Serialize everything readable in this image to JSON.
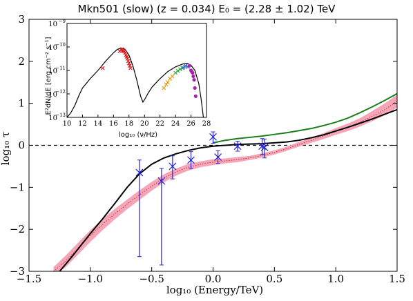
{
  "chart_data": [
    {
      "type": "line",
      "title": "Mkn501 (slow) (z = 0.034) E₀ = (2.28 ± 1.02) TeV",
      "xlabel": "log₁₀ (Energy/TeV)",
      "ylabel": "log₁₀ τ",
      "xlim": [
        -1.5,
        1.5
      ],
      "ylim": [
        -3,
        3
      ],
      "xticks": [
        "−1.5",
        "−1.0",
        "−0.5",
        "0.0",
        "0.5",
        "1.0",
        "1.5"
      ],
      "yticks": [
        "−3",
        "−2",
        "−1",
        "0",
        "1",
        "2",
        "3"
      ],
      "reference_line": {
        "y": 0,
        "style": "dashed",
        "color": "#000000"
      },
      "series": [
        {
          "style": "line",
          "color": "#000000",
          "x": [
            -1.25,
            -1.15,
            -1.0,
            -0.9,
            -0.8,
            -0.7,
            -0.6,
            -0.5,
            -0.4,
            -0.3,
            -0.2,
            -0.1,
            0.0,
            0.1,
            0.2,
            0.3,
            0.4,
            0.5,
            0.6,
            0.7,
            0.8,
            0.9,
            1.0,
            1.1,
            1.2,
            1.3,
            1.4,
            1.5
          ],
          "y": [
            -3.0,
            -2.65,
            -2.1,
            -1.75,
            -1.38,
            -1.0,
            -0.68,
            -0.45,
            -0.3,
            -0.2,
            -0.12,
            -0.06,
            -0.02,
            0.0,
            0.02,
            0.03,
            0.04,
            0.06,
            0.08,
            0.12,
            0.18,
            0.25,
            0.34,
            0.43,
            0.53,
            0.63,
            0.74,
            0.85
          ]
        },
        {
          "style": "line",
          "color": "#1a7f1a",
          "x": [
            0.0,
            0.1,
            0.2,
            0.3,
            0.4,
            0.5,
            0.6,
            0.7,
            0.8,
            0.9,
            1.0,
            1.1,
            1.2,
            1.3,
            1.4,
            1.5
          ],
          "y": [
            0.06,
            0.12,
            0.16,
            0.19,
            0.22,
            0.26,
            0.3,
            0.35,
            0.4,
            0.47,
            0.55,
            0.65,
            0.78,
            0.92,
            1.07,
            1.23
          ]
        },
        {
          "style": "band",
          "color": "#f4a6b8",
          "x": [
            -1.3,
            -1.2,
            -1.1,
            -1.0,
            -0.9,
            -0.8,
            -0.7,
            -0.6,
            -0.5,
            -0.4,
            -0.3,
            -0.2,
            -0.1,
            0.0,
            0.1,
            0.2,
            0.3,
            0.4,
            0.5,
            0.6,
            0.7,
            0.8,
            0.9,
            1.0,
            1.1,
            1.2,
            1.3,
            1.4,
            1.5
          ],
          "y": [
            -3.0,
            -2.75,
            -2.45,
            -2.15,
            -1.88,
            -1.63,
            -1.4,
            -1.18,
            -0.97,
            -0.78,
            -0.63,
            -0.52,
            -0.45,
            -0.4,
            -0.37,
            -0.34,
            -0.3,
            -0.24,
            -0.17,
            -0.08,
            0.02,
            0.12,
            0.22,
            0.33,
            0.43,
            0.55,
            0.7,
            0.85,
            1.05
          ],
          "y_low": [
            -3.1,
            -2.9,
            -2.6,
            -2.3,
            -2.02,
            -1.76,
            -1.52,
            -1.3,
            -1.08,
            -0.88,
            -0.72,
            -0.6,
            -0.52,
            -0.47,
            -0.43,
            -0.4,
            -0.35,
            -0.29,
            -0.22,
            -0.13,
            -0.03,
            0.06,
            0.15,
            0.25,
            0.34,
            0.45,
            0.58,
            0.72,
            0.9
          ],
          "y_high": [
            -2.9,
            -2.62,
            -2.32,
            -2.02,
            -1.75,
            -1.51,
            -1.29,
            -1.07,
            -0.87,
            -0.69,
            -0.55,
            -0.44,
            -0.38,
            -0.33,
            -0.31,
            -0.28,
            -0.25,
            -0.19,
            -0.12,
            -0.03,
            0.08,
            0.18,
            0.29,
            0.41,
            0.52,
            0.65,
            0.82,
            1.0,
            1.2
          ]
        },
        {
          "style": "errorbar",
          "color": "#2222dd",
          "x": [
            -0.6,
            -0.42,
            -0.33,
            -0.18,
            0.0,
            0.04,
            0.2,
            0.4,
            0.42
          ],
          "y": [
            -0.65,
            -0.85,
            -0.5,
            -0.35,
            0.2,
            -0.28,
            -0.02,
            -0.02,
            -0.05
          ],
          "yerr_low": [
            2.0,
            2.0,
            0.3,
            0.2,
            0.15,
            0.15,
            0.12,
            0.2,
            0.25
          ],
          "yerr_high": [
            0.3,
            0.3,
            0.25,
            0.2,
            0.12,
            0.15,
            0.12,
            0.18,
            0.2
          ]
        }
      ]
    },
    {
      "type": "line",
      "xlabel": "log₁₀ (ν/Hz)",
      "ylabel": "E²dN/dE [erg cm⁻² s⁻¹]",
      "xlim": [
        10,
        28
      ],
      "ylim_log": [
        -13,
        -9
      ],
      "yscale": "log",
      "xticks": [
        "10",
        "12",
        "14",
        "16",
        "18",
        "20",
        "22",
        "24",
        "26",
        "28"
      ],
      "ytick_mantissa": "10",
      "ytick_exponents": [
        "−13",
        "−12",
        "−11",
        "−10",
        "−9"
      ],
      "series": [
        {
          "style": "line",
          "color": "#000000",
          "x": [
            10,
            10.5,
            11,
            11.5,
            12,
            13,
            14,
            15,
            16,
            16.5,
            17,
            17.5,
            18,
            18.5,
            19,
            19.5,
            19.8,
            20,
            20.5,
            21,
            22,
            23,
            24,
            25,
            25.5,
            26,
            26.5,
            27,
            27.3,
            27.6
          ],
          "y": [
            -13.0,
            -12.8,
            -12.5,
            -12.1,
            -11.75,
            -11.35,
            -11.0,
            -10.6,
            -10.25,
            -10.1,
            -10.05,
            -10.1,
            -10.35,
            -10.8,
            -11.4,
            -12.1,
            -12.35,
            -12.25,
            -11.95,
            -11.7,
            -11.35,
            -11.05,
            -10.85,
            -10.72,
            -10.7,
            -10.78,
            -11.0,
            -11.55,
            -12.2,
            -13.0
          ]
        },
        {
          "style": "markers",
          "color": "#dd1111",
          "x": [
            14.6,
            16.8,
            17.0,
            17.1,
            17.2,
            17.3,
            17.4,
            17.5,
            17.6,
            17.7,
            17.8,
            17.9,
            18.0,
            18.1,
            18.2
          ],
          "y": [
            -10.9,
            -10.18,
            -10.12,
            -10.1,
            -10.13,
            -10.17,
            -10.2,
            -10.25,
            -10.35,
            -10.42,
            -10.5,
            -10.6,
            -10.7,
            -10.8,
            -10.9
          ]
        },
        {
          "style": "markers",
          "color": "#e69500",
          "x": [
            22.5,
            22.8,
            23.0,
            23.3,
            23.6
          ],
          "y": [
            -11.75,
            -11.6,
            -11.5,
            -11.35,
            -11.25
          ]
        },
        {
          "style": "markers",
          "color": "#33aa33",
          "x": [
            24.0,
            24.3,
            24.6,
            24.9,
            25.2
          ],
          "y": [
            -11.1,
            -11.02,
            -10.95,
            -10.9,
            -10.85
          ]
        },
        {
          "style": "markers",
          "color": "#3355ee",
          "x": [
            25.0,
            25.3,
            25.6
          ],
          "y": [
            -10.88,
            -10.8,
            -10.85
          ]
        },
        {
          "style": "markers",
          "color": "#aa22aa",
          "x": [
            25.8,
            26.0,
            26.1,
            26.2,
            26.3,
            26.4,
            26.5,
            26.6
          ],
          "y": [
            -10.8,
            -11.0,
            -11.05,
            -11.1,
            -11.25,
            -11.4,
            -11.75,
            -12.1
          ]
        }
      ]
    }
  ]
}
